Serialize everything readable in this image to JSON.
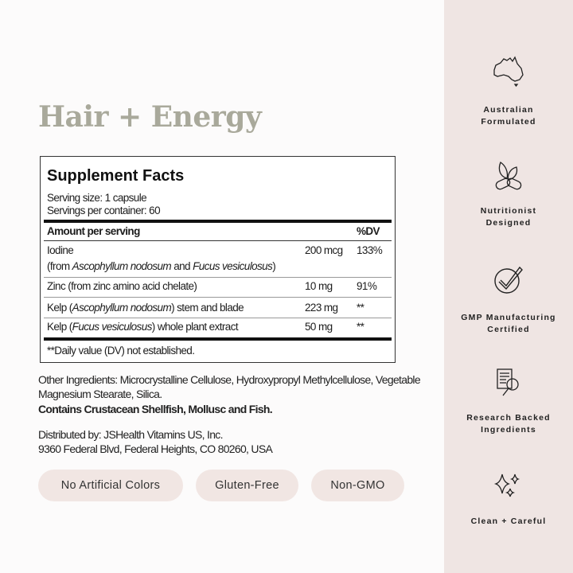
{
  "title": "Hair + Energy",
  "supplement_facts": {
    "heading": "Supplement Facts",
    "serving_size": "Serving size: 1 capsule",
    "servings_per_container": "Servings per container: 60",
    "col_amount": "Amount per serving",
    "col_dv": "%DV",
    "rows": [
      {
        "line1": [
          {
            "t": "Iodine"
          }
        ],
        "line2": [
          {
            "t": "(from "
          },
          {
            "t": "Ascophyllum nodosum",
            "i": true
          },
          {
            "t": " and "
          },
          {
            "t": "Fucus vesiculosus",
            "i": true
          },
          {
            "t": ")"
          }
        ],
        "amount": "200 mcg",
        "dv": "133%"
      },
      {
        "line1": [
          {
            "t": "Zinc (from zinc amino acid chelate)"
          }
        ],
        "amount": "10 mg",
        "dv": "91%"
      },
      {
        "line1": [
          {
            "t": "Kelp ("
          },
          {
            "t": "Ascophyllum nodosum",
            "i": true
          },
          {
            "t": ") stem and blade"
          }
        ],
        "amount": "223 mg",
        "dv": "**"
      },
      {
        "line1": [
          {
            "t": "Kelp ("
          },
          {
            "t": "Fucus vesiculosus",
            "i": true
          },
          {
            "t": ") whole plant extract"
          }
        ],
        "amount": "50 mg",
        "dv": "**"
      }
    ],
    "footnote": "**Daily value (DV) not established."
  },
  "other_ingredients_1": "Other Ingredients: Microcrystalline Cellulose, Hydroxypropyl Methylcellulose, Vegetable",
  "other_ingredients_2": "Magnesium Stearate, Silica.",
  "allergens": "Contains Crustacean Shellfish, Mollusc and Fish.",
  "distributor_1": "Distributed by: JSHealth Vitamins US, Inc.",
  "distributor_2": "9360 Federal Blvd, Federal Heights, CO 80260, USA",
  "pills": [
    "No Artificial Colors",
    "Gluten-Free",
    "Non-GMO"
  ],
  "features": [
    {
      "icon": "australia-map-icon",
      "l1": "Australian",
      "l2": "Formulated"
    },
    {
      "icon": "leaf-capsule-icon",
      "l1": "Nutritionist",
      "l2": "Designed"
    },
    {
      "icon": "check-circle-icon",
      "l1": "GMP Manufacturing",
      "l2": "Certified"
    },
    {
      "icon": "document-magnifier-icon",
      "l1": "Research Backed",
      "l2": "Ingredients"
    },
    {
      "icon": "sparkles-icon",
      "l1": "Clean + Careful",
      "l2": ""
    }
  ],
  "colors": {
    "title": "#a9a99b",
    "panel": "#efe5e3",
    "pill": "#f1e6e3"
  }
}
